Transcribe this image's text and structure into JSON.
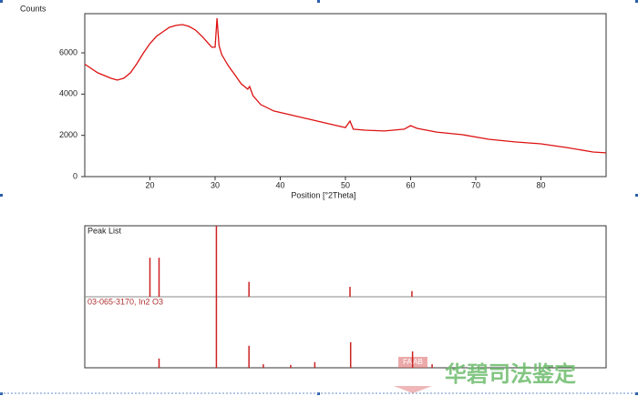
{
  "chart_data": [
    {
      "type": "line",
      "y_label": "Counts",
      "x_label": "Position [°2Theta]",
      "xlim": [
        10,
        90
      ],
      "ylim": [
        0,
        7900
      ],
      "xticks": [
        20,
        30,
        40,
        50,
        60,
        70,
        80
      ],
      "yticks": [
        0,
        2000,
        4000,
        6000
      ],
      "x": [
        10,
        12,
        14,
        15,
        16,
        17,
        18,
        19,
        20,
        21,
        22,
        23,
        24,
        25,
        26,
        27,
        28,
        29,
        29.5,
        30,
        30.3,
        30.6,
        31,
        32,
        33,
        34,
        35,
        35.3,
        35.8,
        37,
        39,
        42,
        45,
        48,
        50,
        50.7,
        51.2,
        53,
        56,
        59,
        60,
        61,
        64,
        68,
        72,
        76,
        80,
        84,
        88,
        90
      ],
      "series": [
        {
          "color": "#dd1111",
          "values": [
            5450,
            5030,
            4770,
            4680,
            4770,
            5030,
            5475,
            6000,
            6450,
            6800,
            7020,
            7240,
            7330,
            7370,
            7280,
            7100,
            6800,
            6450,
            6270,
            6270,
            7680,
            6360,
            5920,
            5390,
            4950,
            4500,
            4240,
            4370,
            3930,
            3490,
            3180,
            2960,
            2740,
            2520,
            2380,
            2690,
            2300,
            2250,
            2210,
            2300,
            2470,
            2340,
            2160,
            2030,
            1810,
            1680,
            1590,
            1410,
            1190,
            1150
          ]
        }
      ]
    },
    {
      "type": "stick",
      "xlim": [
        10,
        90
      ],
      "ylim": [
        0,
        100
      ],
      "series": [
        {
          "name": "Peak List",
          "color": "#cc2222",
          "x": [
            20.0,
            21.4,
            30.2,
            35.2,
            50.7,
            60.2
          ],
          "values": [
            55,
            55,
            100,
            21,
            14,
            8
          ]
        },
        {
          "name": "03-065-3170, In2 O3",
          "color": "#cc2222",
          "x": [
            21.4,
            30.2,
            35.2,
            37.4,
            41.6,
            45.3,
            50.8,
            60.3,
            63.3
          ],
          "values": [
            13,
            100,
            31,
            5,
            4,
            8,
            36,
            23,
            5
          ]
        }
      ]
    }
  ],
  "watermark": {
    "text": "华碧司法鉴定",
    "logo": "FA AB"
  }
}
